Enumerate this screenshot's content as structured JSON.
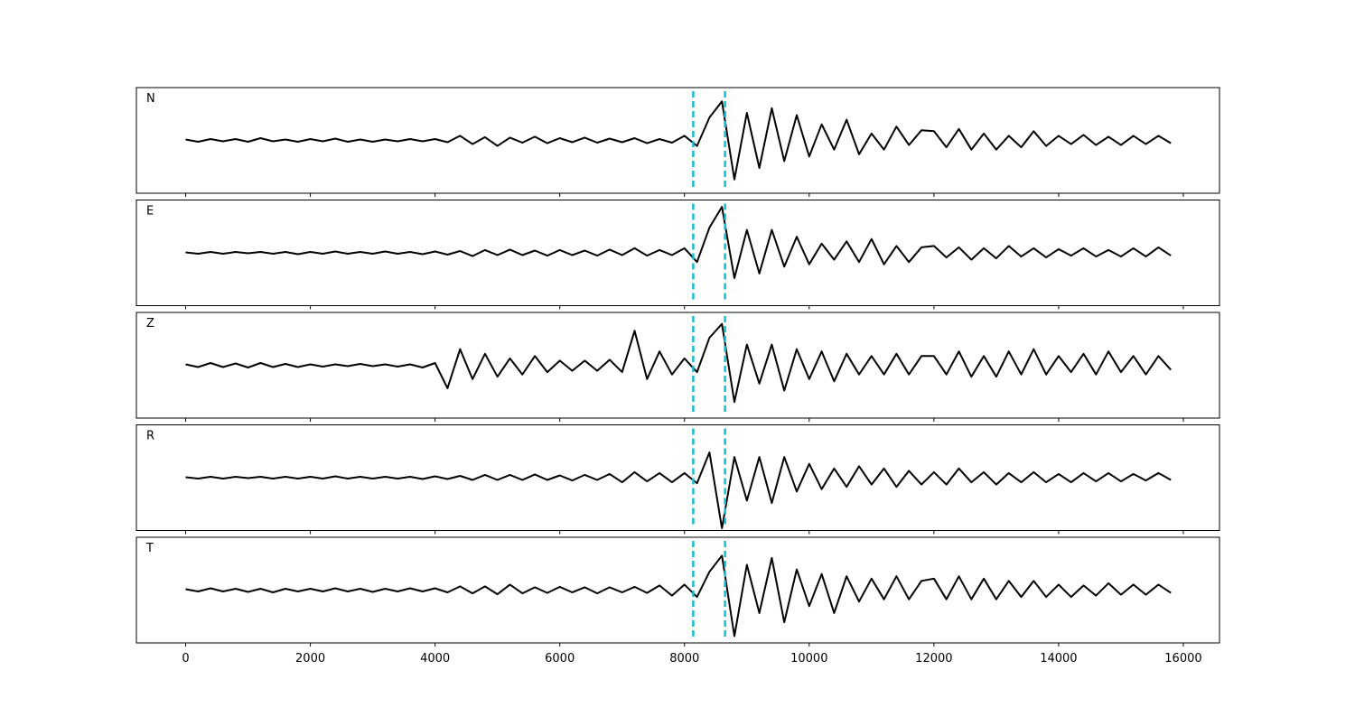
{
  "chart_data": {
    "type": "line",
    "x": [
      0,
      200,
      400,
      600,
      800,
      1000,
      1200,
      1400,
      1600,
      1800,
      2000,
      2200,
      2400,
      2600,
      2800,
      3000,
      3200,
      3400,
      3600,
      3800,
      4000,
      4200,
      4400,
      4600,
      4800,
      5000,
      5200,
      5400,
      5600,
      5800,
      6000,
      6200,
      6400,
      6600,
      6800,
      7000,
      7200,
      7400,
      7600,
      7800,
      8000,
      8200,
      8400,
      8600,
      8800,
      9000,
      9200,
      9400,
      9600,
      9800,
      10000,
      10200,
      10400,
      10600,
      10800,
      11000,
      11200,
      11400,
      11600,
      11800,
      12000,
      12200,
      12400,
      12600,
      12800,
      13000,
      13200,
      13400,
      13600,
      13800,
      14000,
      14200,
      14400,
      14600,
      14800,
      15000,
      15200,
      15400,
      15600,
      15800
    ],
    "xlim": [
      -790,
      16580
    ],
    "xticks": [
      0,
      2000,
      4000,
      6000,
      8000,
      10000,
      12000,
      14000,
      16000
    ],
    "ylim": [
      -1.15,
      1.15
    ],
    "series": [
      {
        "name": "N",
        "color": "#000000",
        "values": [
          0.02,
          -0.03,
          0.03,
          -0.02,
          0.03,
          -0.03,
          0.05,
          -0.02,
          0.02,
          -0.03,
          0.03,
          -0.02,
          0.04,
          -0.03,
          0.02,
          -0.03,
          0.02,
          -0.02,
          0.03,
          -0.02,
          0.03,
          -0.04,
          0.1,
          -0.08,
          0.07,
          -0.12,
          0.06,
          -0.05,
          0.08,
          -0.06,
          0.05,
          -0.04,
          0.06,
          -0.05,
          0.04,
          -0.04,
          0.05,
          -0.06,
          0.03,
          -0.05,
          0.1,
          -0.12,
          0.5,
          0.85,
          -0.85,
          0.6,
          -0.6,
          0.7,
          -0.45,
          0.55,
          -0.35,
          0.35,
          -0.2,
          0.45,
          -0.3,
          0.15,
          -0.2,
          0.3,
          -0.1,
          0.22,
          0.2,
          -0.15,
          0.25,
          -0.2,
          0.15,
          -0.2,
          0.1,
          -0.15,
          0.2,
          -0.12,
          0.1,
          -0.08,
          0.12,
          -0.1,
          0.08,
          -0.1,
          0.1,
          -0.08,
          0.1,
          -0.06
        ]
      },
      {
        "name": "E",
        "color": "#000000",
        "values": [
          0.01,
          -0.02,
          0.02,
          -0.02,
          0.02,
          -0.01,
          0.02,
          -0.02,
          0.02,
          -0.03,
          0.02,
          -0.02,
          0.03,
          -0.02,
          0.02,
          -0.02,
          0.03,
          -0.02,
          0.02,
          -0.03,
          0.03,
          -0.04,
          0.04,
          -0.07,
          0.06,
          -0.05,
          0.07,
          -0.05,
          0.05,
          -0.06,
          0.06,
          -0.05,
          0.05,
          -0.06,
          0.07,
          -0.05,
          0.1,
          -0.06,
          0.06,
          -0.05,
          0.1,
          -0.2,
          0.55,
          1.0,
          -0.55,
          0.5,
          -0.45,
          0.5,
          -0.3,
          0.35,
          -0.25,
          0.2,
          -0.15,
          0.25,
          -0.2,
          0.3,
          -0.25,
          0.15,
          -0.2,
          0.12,
          0.15,
          -0.1,
          0.12,
          -0.15,
          0.1,
          -0.12,
          0.15,
          -0.08,
          0.1,
          -0.1,
          0.08,
          -0.06,
          0.1,
          -0.08,
          0.06,
          -0.08,
          0.1,
          -0.08,
          0.12,
          -0.06
        ]
      },
      {
        "name": "Z",
        "color": "#000000",
        "values": [
          0.02,
          -0.04,
          0.05,
          -0.04,
          0.04,
          -0.05,
          0.05,
          -0.04,
          0.03,
          -0.04,
          0.02,
          -0.03,
          0.02,
          -0.02,
          0.03,
          -0.02,
          0.02,
          -0.03,
          0.02,
          -0.05,
          0.05,
          -0.5,
          0.35,
          -0.3,
          0.25,
          -0.25,
          0.15,
          -0.2,
          0.2,
          -0.15,
          0.1,
          -0.12,
          0.1,
          -0.12,
          0.12,
          -0.15,
          0.75,
          -0.3,
          0.3,
          -0.2,
          0.15,
          -0.15,
          0.6,
          0.9,
          -0.8,
          0.45,
          -0.4,
          0.45,
          -0.55,
          0.35,
          -0.3,
          0.3,
          -0.35,
          0.25,
          -0.2,
          0.2,
          -0.2,
          0.25,
          -0.2,
          0.2,
          0.2,
          -0.2,
          0.3,
          -0.25,
          0.2,
          -0.25,
          0.3,
          -0.2,
          0.35,
          -0.2,
          0.2,
          -0.15,
          0.25,
          -0.2,
          0.3,
          -0.15,
          0.2,
          -0.2,
          0.2,
          -0.1
        ]
      },
      {
        "name": "R",
        "color": "#000000",
        "values": [
          0.01,
          -0.02,
          0.02,
          -0.02,
          0.02,
          -0.01,
          0.02,
          -0.02,
          0.02,
          -0.02,
          0.02,
          -0.02,
          0.03,
          -0.02,
          0.02,
          -0.02,
          0.02,
          -0.02,
          0.02,
          -0.03,
          0.03,
          -0.03,
          0.04,
          -0.05,
          0.06,
          -0.05,
          0.06,
          -0.05,
          0.07,
          -0.05,
          0.05,
          -0.06,
          0.06,
          -0.05,
          0.08,
          -0.1,
          0.12,
          -0.08,
          0.1,
          -0.1,
          0.1,
          -0.12,
          0.55,
          -1.1,
          0.45,
          -0.5,
          0.45,
          -0.55,
          0.45,
          -0.3,
          0.3,
          -0.25,
          0.2,
          -0.2,
          0.25,
          -0.15,
          0.2,
          -0.2,
          0.15,
          -0.15,
          0.12,
          -0.15,
          0.2,
          -0.1,
          0.12,
          -0.15,
          0.1,
          -0.1,
          0.12,
          -0.1,
          0.08,
          -0.1,
          0.1,
          -0.08,
          0.1,
          -0.08,
          0.08,
          -0.06,
          0.1,
          -0.05
        ]
      },
      {
        "name": "T",
        "color": "#000000",
        "values": [
          0.02,
          -0.03,
          0.04,
          -0.03,
          0.03,
          -0.04,
          0.03,
          -0.05,
          0.03,
          -0.03,
          0.03,
          -0.03,
          0.04,
          -0.03,
          0.03,
          -0.04,
          0.03,
          -0.03,
          0.04,
          -0.03,
          0.04,
          -0.05,
          0.08,
          -0.07,
          0.08,
          -0.09,
          0.12,
          -0.07,
          0.06,
          -0.06,
          0.07,
          -0.05,
          0.06,
          -0.07,
          0.06,
          -0.05,
          0.07,
          -0.06,
          0.1,
          -0.12,
          0.12,
          -0.15,
          0.4,
          0.75,
          -1.0,
          0.55,
          -0.5,
          0.7,
          -0.7,
          0.45,
          -0.35,
          0.35,
          -0.5,
          0.3,
          -0.25,
          0.25,
          -0.2,
          0.3,
          -0.2,
          0.2,
          0.25,
          -0.2,
          0.3,
          -0.2,
          0.25,
          -0.2,
          0.2,
          -0.15,
          0.2,
          -0.15,
          0.12,
          -0.15,
          0.1,
          -0.12,
          0.15,
          -0.1,
          0.12,
          -0.1,
          0.12,
          -0.06
        ]
      }
    ],
    "markers": {
      "x": [
        8140,
        8650
      ],
      "color": "#17becf"
    }
  }
}
